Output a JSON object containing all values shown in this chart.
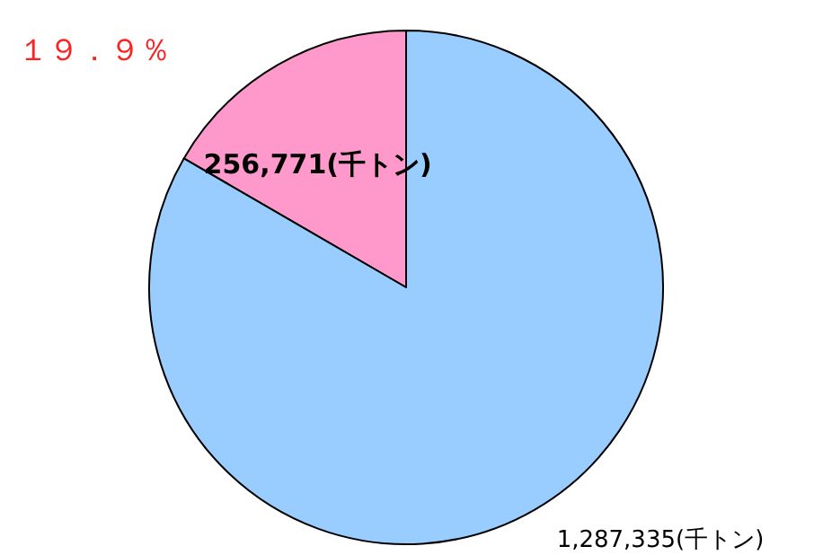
{
  "chart_data": {
    "type": "pie",
    "categories": [
      null,
      null
    ],
    "values": [
      256771,
      1287335
    ],
    "colors": [
      "#ff99cc",
      "#99ccff"
    ],
    "value_labels": [
      "256,771(千トン)",
      "1,287,335(千トン)"
    ],
    "annotations": [
      "１９．９％"
    ]
  }
}
